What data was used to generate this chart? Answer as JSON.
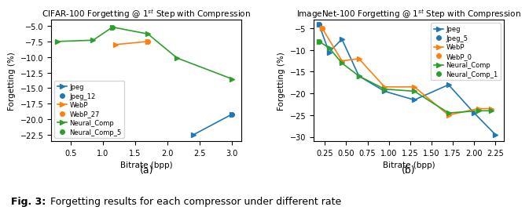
{
  "cifar": {
    "title": "CIFAR-100 Forgetting @ 1$^{st}$ Step with Compression",
    "xlabel": "Bitrate (bpp)",
    "ylabel": "Forgetting (%)",
    "xlim": [
      0.2,
      3.15
    ],
    "ylim": [
      -23.5,
      -4.0
    ],
    "yticks": [
      -22.5,
      -20.0,
      -17.5,
      -15.0,
      -12.5,
      -10.0,
      -7.5,
      -5.0
    ],
    "xticks": [
      0.5,
      1.0,
      1.5,
      2.0,
      2.5,
      3.0
    ],
    "series": [
      {
        "name": "Jpeg",
        "x": [
          2.4,
          3.0
        ],
        "y": [
          -22.5,
          -19.2
        ],
        "color": "#1f77b4",
        "marker": ">",
        "linestyle": "-",
        "in_legend": true
      },
      {
        "name": "Jpeg_12",
        "x": [
          3.0
        ],
        "y": [
          -19.2
        ],
        "color": "#1f77b4",
        "marker": "o",
        "linestyle": "None",
        "in_legend": true
      },
      {
        "name": "WebP",
        "x": [
          1.2,
          1.7
        ],
        "y": [
          -8.0,
          -7.5
        ],
        "color": "#ff7f0e",
        "marker": ">",
        "linestyle": "-",
        "in_legend": true
      },
      {
        "name": "WebP_27",
        "x": [
          1.7
        ],
        "y": [
          -7.5
        ],
        "color": "#ff7f0e",
        "marker": "o",
        "linestyle": "None",
        "in_legend": true
      },
      {
        "name": "Neural_Comp",
        "x": [
          0.3,
          0.85,
          1.15,
          1.7,
          2.15,
          3.0
        ],
        "y": [
          -7.5,
          -7.3,
          -5.2,
          -6.3,
          -10.15,
          -13.5
        ],
        "color": "#2ca02c",
        "marker": ">",
        "linestyle": "-",
        "in_legend": true
      },
      {
        "name": "Neural_Comp_5",
        "x": [
          1.15
        ],
        "y": [
          -5.2
        ],
        "color": "#2ca02c",
        "marker": "o",
        "linestyle": "None",
        "in_legend": true
      }
    ],
    "legend_loc": "lower left"
  },
  "imagenet": {
    "title": "ImageNet-100 Forgetting @ 1$^{st}$ Step with Compression",
    "xlabel": "Bitrate (bpp)",
    "ylabel": "Forgetting (%)",
    "xlim": [
      0.12,
      2.35
    ],
    "ylim": [
      -31.0,
      -3.0
    ],
    "yticks": [
      -30,
      -25,
      -20,
      -15,
      -10,
      -5
    ],
    "xticks": [
      0.25,
      0.5,
      0.75,
      1.0,
      1.25,
      1.5,
      1.75,
      2.0,
      2.25
    ],
    "series": [
      {
        "name": "Jpeg",
        "x": [
          0.18,
          0.3,
          0.45,
          0.65,
          0.95,
          1.3,
          1.7,
          2.0,
          2.25
        ],
        "y": [
          -4.0,
          -10.5,
          -7.5,
          -16.0,
          -19.5,
          -21.5,
          -18.0,
          -24.5,
          -29.5
        ],
        "color": "#1f77b4",
        "marker": ">",
        "linestyle": "-",
        "in_legend": true
      },
      {
        "name": "Jpeg_5",
        "x": [
          0.18
        ],
        "y": [
          -4.0
        ],
        "color": "#1f77b4",
        "marker": "o",
        "linestyle": "None",
        "in_legend": true
      },
      {
        "name": "WebP",
        "x": [
          0.22,
          0.45,
          0.65,
          0.95,
          1.3,
          1.7,
          2.05,
          2.2
        ],
        "y": [
          -5.0,
          -12.5,
          -12.0,
          -18.5,
          -18.5,
          -25.0,
          -23.5,
          -23.5
        ],
        "color": "#ff7f0e",
        "marker": ">",
        "linestyle": "-",
        "in_legend": true
      },
      {
        "name": "WebP_0",
        "x": [
          0.22
        ],
        "y": [
          -5.0
        ],
        "color": "#ff7f0e",
        "marker": "o",
        "linestyle": "None",
        "in_legend": true
      },
      {
        "name": "Neural_Comp",
        "x": [
          0.18,
          0.3,
          0.45,
          0.65,
          0.95,
          1.3,
          1.7,
          2.05,
          2.2
        ],
        "y": [
          -8.0,
          -9.5,
          -13.0,
          -16.0,
          -19.0,
          -19.5,
          -24.5,
          -24.0,
          -24.0
        ],
        "color": "#2ca02c",
        "marker": ">",
        "linestyle": "-",
        "in_legend": true
      },
      {
        "name": "Neural_Comp_1",
        "x": [
          0.18
        ],
        "y": [
          -8.0
        ],
        "color": "#2ca02c",
        "marker": "o",
        "linestyle": "None",
        "in_legend": true
      }
    ],
    "legend_loc": "upper right"
  },
  "caption_bold": "Fig. 3:",
  "caption_rest": " Forgetting results for each compressor under different rate",
  "subfig_labels": [
    "(a)",
    "(b)"
  ],
  "background_color": "#ffffff"
}
